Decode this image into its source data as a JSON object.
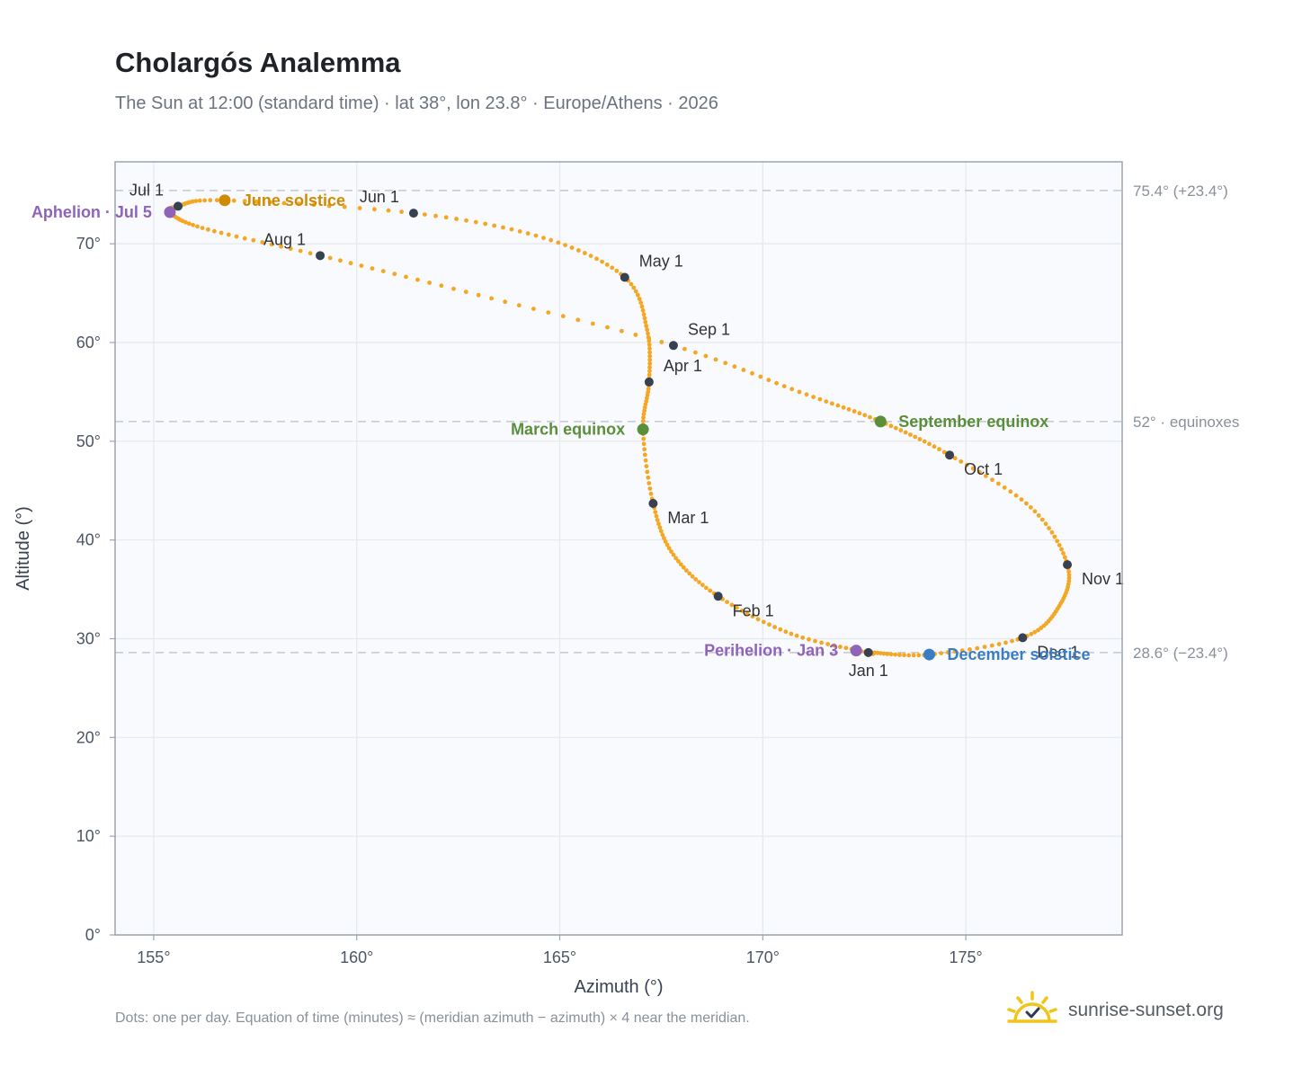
{
  "title": "Cholargós Analemma",
  "subtitle": "The Sun at 12:00 (standard time) · lat 38°, lon 23.8° · Europe/Athens · 2026",
  "footnote": "Dots: one per day. Equation of time (minutes) ≈ (meridian azimuth − azimuth) × 4 near the meridian.",
  "brand": {
    "text": "sunrise-sunset.org",
    "icon": "sun-logo-icon"
  },
  "colors": {
    "analemma": "#f5a623",
    "month_dot": "#374151",
    "june_solstice": "#d08a00",
    "december_solstice": "#3b7dc4",
    "equinox": "#5a8f3a",
    "apsis": "#8f63b8",
    "reference_line": "#c3c8cf",
    "plot_background": "#f8fafd",
    "plot_border": "#9aa5b1",
    "grid": "#e5e8ec"
  },
  "chart_data": {
    "type": "scatter",
    "title": "Cholargós Analemma",
    "subtitle": "The Sun at 12:00 (standard time) · lat 38°, lon 23.8° · Europe/Athens · 2026",
    "xlabel": "Azimuth (°)",
    "ylabel": "Altitude (°)",
    "xlim": [
      154.05,
      178.85
    ],
    "ylim": [
      0,
      78.3
    ],
    "x_ticks": [
      155,
      160,
      165,
      170,
      175
    ],
    "x_tick_labels": [
      "155°",
      "160°",
      "165°",
      "170°",
      "175°"
    ],
    "y_ticks": [
      0,
      10,
      20,
      30,
      40,
      50,
      60,
      70
    ],
    "y_tick_labels": [
      "0°",
      "10°",
      "20°",
      "30°",
      "40°",
      "50°",
      "60°",
      "70°"
    ],
    "grid": true,
    "reference_lines": [
      {
        "y": 75.4,
        "label": "75.4° (+23.4°)"
      },
      {
        "y": 52,
        "label": "52° · equinoxes"
      },
      {
        "y": 28.6,
        "label": "28.6° (−23.4°)"
      }
    ],
    "series": [
      {
        "marker": "one dot per day",
        "anchors": [
          {
            "date": "Jan 1",
            "az": 172.6,
            "alt": 28.6
          },
          {
            "date": "Jan 15",
            "az": 170.7,
            "alt": 30.5
          },
          {
            "date": "Feb 1",
            "az": 168.9,
            "alt": 34.3
          },
          {
            "date": "Feb 15",
            "az": 167.8,
            "alt": 38.5
          },
          {
            "date": "Mar 1",
            "az": 167.3,
            "alt": 43.7
          },
          {
            "date": "Mar 20",
            "az": 167.05,
            "alt": 51.2
          },
          {
            "date": "Apr 1",
            "az": 167.2,
            "alt": 56.0
          },
          {
            "date": "Apr 15",
            "az": 167.15,
            "alt": 61.3
          },
          {
            "date": "May 1",
            "az": 166.6,
            "alt": 66.6
          },
          {
            "date": "May 15",
            "az": 164.6,
            "alt": 70.6
          },
          {
            "date": "Jun 1",
            "az": 161.4,
            "alt": 73.1
          },
          {
            "date": "Jun 21",
            "az": 156.75,
            "alt": 74.4
          },
          {
            "date": "Jul 1",
            "az": 155.6,
            "alt": 73.8
          },
          {
            "date": "Jul 5",
            "az": 155.4,
            "alt": 73.2
          },
          {
            "date": "Jul 15",
            "az": 156.2,
            "alt": 71.6
          },
          {
            "date": "Aug 1",
            "az": 159.1,
            "alt": 68.8
          },
          {
            "date": "Aug 15",
            "az": 163.0,
            "alt": 64.8
          },
          {
            "date": "Sep 1",
            "az": 167.8,
            "alt": 59.7
          },
          {
            "date": "Sep 15",
            "az": 170.9,
            "alt": 55.0
          },
          {
            "date": "Sep 23",
            "az": 172.9,
            "alt": 52.0
          },
          {
            "date": "Oct 1",
            "az": 174.6,
            "alt": 48.6
          },
          {
            "date": "Oct 15",
            "az": 176.6,
            "alt": 43.3
          },
          {
            "date": "Nov 1",
            "az": 177.5,
            "alt": 37.5
          },
          {
            "date": "Nov 15",
            "az": 177.3,
            "alt": 33.3
          },
          {
            "date": "Dec 1",
            "az": 176.4,
            "alt": 30.1
          },
          {
            "date": "Dec 21",
            "az": 174.1,
            "alt": 28.4
          },
          {
            "date": "Dec 31",
            "az": 172.7,
            "alt": 28.6
          }
        ]
      }
    ],
    "month_markers": [
      {
        "label": "Jan 1",
        "az": 172.6,
        "alt": 28.6,
        "label_side": "below"
      },
      {
        "label": "Feb 1",
        "az": 168.9,
        "alt": 34.3,
        "label_side": "below-right"
      },
      {
        "label": "Mar 1",
        "az": 167.3,
        "alt": 43.7,
        "label_side": "below-right"
      },
      {
        "label": "Apr 1",
        "az": 167.2,
        "alt": 56.0,
        "label_side": "above-right"
      },
      {
        "label": "May 1",
        "az": 166.6,
        "alt": 66.6,
        "label_side": "above-right"
      },
      {
        "label": "Jun 1",
        "az": 161.4,
        "alt": 73.1,
        "label_side": "above-left"
      },
      {
        "label": "Jul 1",
        "az": 155.6,
        "alt": 73.8,
        "label_side": "above-left"
      },
      {
        "label": "Aug 1",
        "az": 159.1,
        "alt": 68.8,
        "label_side": "above-left"
      },
      {
        "label": "Sep 1",
        "az": 167.8,
        "alt": 59.7,
        "label_side": "above-right"
      },
      {
        "label": "Oct 1",
        "az": 174.6,
        "alt": 48.6,
        "label_side": "below-right"
      },
      {
        "label": "Nov 1",
        "az": 177.5,
        "alt": 37.5,
        "label_side": "below-right"
      },
      {
        "label": "Dec 1",
        "az": 176.4,
        "alt": 30.1,
        "label_side": "below-right"
      }
    ],
    "events": [
      {
        "label": "June solstice",
        "az": 156.75,
        "alt": 74.4,
        "color_key": "june_solstice",
        "label_side": "right"
      },
      {
        "label": "Aphelion · Jul 5",
        "az": 155.4,
        "alt": 73.2,
        "color_key": "apsis",
        "label_side": "left"
      },
      {
        "label": "March equinox",
        "az": 167.05,
        "alt": 51.2,
        "color_key": "equinox",
        "label_side": "left"
      },
      {
        "label": "September equinox",
        "az": 172.9,
        "alt": 52.0,
        "color_key": "equinox",
        "label_side": "right"
      },
      {
        "label": "Perihelion · Jan 3",
        "az": 172.3,
        "alt": 28.8,
        "color_key": "apsis",
        "label_side": "left"
      },
      {
        "label": "December solstice",
        "az": 174.1,
        "alt": 28.4,
        "color_key": "december_solstice",
        "label_side": "right"
      }
    ]
  }
}
